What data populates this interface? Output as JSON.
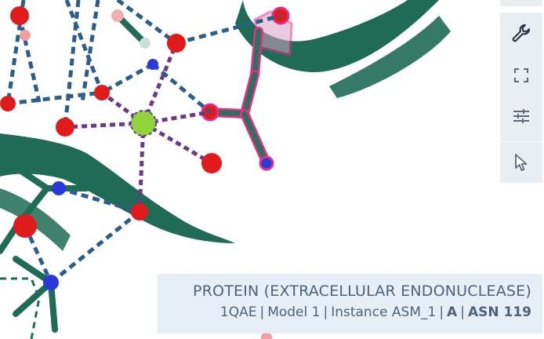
{
  "viewer": {
    "scene": "3d-molecular-structure",
    "colors": {
      "ribbon": "#1f6b55",
      "oxygen": "#e01b1b",
      "nitrogen": "#2a3ad8",
      "metal": "#8fd43a",
      "hbond": "#2b5e8a",
      "coordination": "#6a3a86",
      "highlight": "#e0308a"
    }
  },
  "toolbar": {
    "items": [
      {
        "icon": "wrench-icon"
      },
      {
        "icon": "expand-icon"
      },
      {
        "icon": "settings-sliders-icon"
      },
      {
        "icon": "cursor-icon"
      }
    ]
  },
  "info": {
    "title": "PROTEIN (EXTRACELLULAR ENDONUCLEASE)",
    "entry": "1QAE",
    "model": "Model 1",
    "instance": "Instance ASM_1",
    "chain": "A",
    "residue": "ASN 119",
    "separator": "|"
  }
}
